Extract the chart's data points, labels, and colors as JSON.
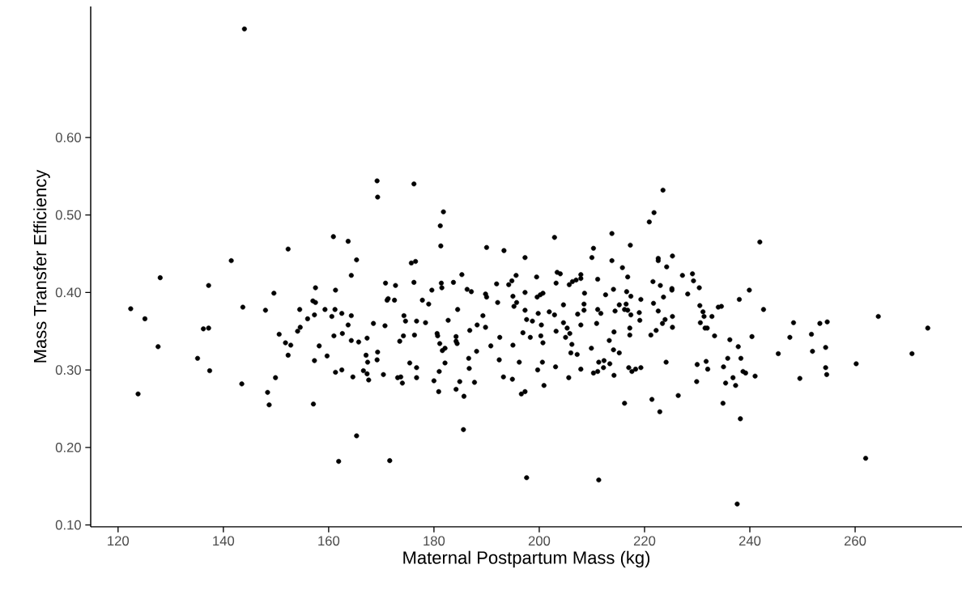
{
  "chart_data": {
    "type": "scatter",
    "xlabel": "Maternal Postpartum Mass (kg)",
    "ylabel": "Mass Transfer Efficiency",
    "xlim": [
      114.8,
      280.3
    ],
    "ylim": [
      0.0975,
      0.769
    ],
    "xticks": [
      120,
      140,
      160,
      180,
      200,
      220,
      240,
      260
    ],
    "yticks": [
      {
        "value": 0.1,
        "label": "0.10"
      },
      {
        "value": 0.2,
        "label": "0.20"
      },
      {
        "value": 0.3,
        "label": "0.30"
      },
      {
        "value": 0.4,
        "label": "0.40"
      },
      {
        "value": 0.5,
        "label": "0.50"
      },
      {
        "value": 0.6,
        "label": "0.60"
      }
    ],
    "marker": "circle",
    "x": [
      144.0,
      122.4,
      125.1,
      123.8,
      127.6,
      128.0,
      135.1,
      136.2,
      137.2,
      137.2,
      137.4,
      141.5,
      143.7,
      143.5,
      148.0,
      148.4,
      148.7,
      149.6,
      149.9,
      150.6,
      151.8,
      152.3,
      152.3,
      152.8,
      154.1,
      154.6,
      154.5,
      156.0,
      157.1,
      157.0,
      157.5,
      157.3,
      157.5,
      157.3,
      158.2,
      159.3,
      159.7,
      160.6,
      161.2,
      161.0,
      160.9,
      161.3,
      161.3,
      161.9,
      169.2,
      169.3,
      176.2,
      181.8,
      181.2,
      181.3,
      163.7,
      165.3,
      164.3,
      190.0,
      193.3,
      197.3,
      202.9,
      175.7,
      176.5,
      176.2,
      170.8,
      172.7,
      171.1,
      171.3,
      172.5,
      177.8,
      179.0,
      179.6,
      181.4,
      181.5,
      183.7,
      185.3,
      186.3,
      187.1,
      189.8,
      190.0,
      191.9,
      192.1,
      194.2,
      194.8,
      195.6,
      195.0,
      195.7,
      195.2,
      197.3,
      199.5,
      199.6,
      200.2,
      200.7,
      203.2,
      203.4,
      204.0,
      205.7,
      206.3,
      207.0,
      207.9,
      204.6,
      162.5,
      164.3,
      163.7,
      162.6,
      164.3,
      165.7,
      167.3,
      168.5,
      170.7,
      174.3,
      174.6,
      176.7,
      178.4,
      182.7,
      184.5,
      189.3,
      189.8,
      188.2,
      186.8,
      180.6,
      180.7,
      181.1,
      181.6,
      182.1,
      184.2,
      184.4,
      184.2,
      188.1,
      186.6,
      186.7,
      187.7,
      184.9,
      184.2,
      185.7,
      180.9,
      180.0,
      181.0,
      182.1,
      176.7,
      176.7,
      175.4,
      176.3,
      174.2,
      173.5,
      173.1,
      173.7,
      174.0,
      170.4,
      169.2,
      169.3,
      167.1,
      167.4,
      166.6,
      167.3,
      167.6,
      164.6,
      162.5,
      165.3,
      171.6,
      185.6,
      197.6,
      190.8,
      192.5,
      192.4,
      193.2,
      194.9,
      195.0,
      196.2,
      196.6,
      197.3,
      196.9,
      197.6,
      198.7,
      197.3,
      198.3,
      199.8,
      200.4,
      200.3,
      200.7,
      200.6,
      199.7,
      200.9,
      201.9,
      202.9,
      203.2,
      203.1,
      204.6,
      205.3,
      205.8,
      205.0,
      206.2,
      206.0,
      207.2,
      205.6,
      207.3,
      207.9,
      207.9,
      223.5,
      221.8,
      220.9,
      213.8,
      217.3,
      210.3,
      210.0,
      213.8,
      215.8,
      222.6,
      222.6,
      225.3,
      224.2,
      241.9,
      207.9,
      211.1,
      216.8,
      221.6,
      223.0,
      225.2,
      225.2,
      227.2,
      229.1,
      229.3,
      230.4,
      239.9,
      228.2,
      208.6,
      212.6,
      214.1,
      216.6,
      217.4,
      219.3,
      208.5,
      208.5,
      211.1,
      211.7,
      210.9,
      215.2,
      216.5,
      216.2,
      216.8,
      214.4,
      217.4,
      219.0,
      219.1,
      217.2,
      217.2,
      214.2,
      213.3,
      221.7,
      222.6,
      223.6,
      225.3,
      223.9,
      223.4,
      225.3,
      222.2,
      221.2,
      230.5,
      231.1,
      231.3,
      232.8,
      230.6,
      231.5,
      231.9,
      233.3,
      234.0,
      234.6,
      238.0,
      242.6,
      236.2,
      237.8,
      240.4,
      209.9,
      214.1,
      215.2,
      211.3,
      212.3,
      213.4,
      212.2,
      210.3,
      211.1,
      214.2,
      217.0,
      217.6,
      218.3,
      219.3,
      224.1,
      230.0,
      231.7,
      232.0,
      229.9,
      235.8,
      235.0,
      238.3,
      238.7,
      239.2,
      241.0,
      235.4,
      236.8,
      237.3,
      216.2,
      221.4,
      222.9,
      226.4,
      234.9,
      238.2,
      211.3,
      237.6,
      245.4,
      248.3,
      247.6,
      249.5,
      251.7,
      251.9,
      253.3,
      254.7,
      254.4,
      254.4,
      254.6,
      260.2,
      264.4,
      262.0,
      270.8,
      273.8
    ],
    "series": [
      {
        "color": "#000000",
        "values": [
          0.74,
          0.379,
          0.366,
          0.269,
          0.33,
          0.419,
          0.315,
          0.353,
          0.354,
          0.409,
          0.299,
          0.441,
          0.381,
          0.282,
          0.377,
          0.271,
          0.255,
          0.399,
          0.29,
          0.346,
          0.335,
          0.456,
          0.319,
          0.332,
          0.35,
          0.355,
          0.378,
          0.366,
          0.256,
          0.389,
          0.387,
          0.371,
          0.406,
          0.312,
          0.331,
          0.378,
          0.318,
          0.369,
          0.378,
          0.344,
          0.472,
          0.403,
          0.297,
          0.182,
          0.544,
          0.523,
          0.54,
          0.504,
          0.486,
          0.46,
          0.466,
          0.442,
          0.422,
          0.458,
          0.454,
          0.445,
          0.471,
          0.438,
          0.44,
          0.413,
          0.412,
          0.409,
          0.39,
          0.392,
          0.39,
          0.39,
          0.385,
          0.403,
          0.412,
          0.406,
          0.413,
          0.423,
          0.404,
          0.401,
          0.398,
          0.394,
          0.411,
          0.387,
          0.41,
          0.415,
          0.422,
          0.395,
          0.387,
          0.382,
          0.4,
          0.42,
          0.394,
          0.397,
          0.399,
          0.412,
          0.426,
          0.424,
          0.41,
          0.414,
          0.416,
          0.423,
          0.384,
          0.373,
          0.37,
          0.358,
          0.347,
          0.338,
          0.336,
          0.341,
          0.36,
          0.357,
          0.37,
          0.363,
          0.363,
          0.361,
          0.364,
          0.378,
          0.37,
          0.355,
          0.358,
          0.351,
          0.347,
          0.344,
          0.334,
          0.325,
          0.328,
          0.343,
          0.334,
          0.337,
          0.324,
          0.315,
          0.302,
          0.284,
          0.285,
          0.275,
          0.266,
          0.272,
          0.286,
          0.298,
          0.309,
          0.303,
          0.29,
          0.309,
          0.345,
          0.344,
          0.337,
          0.29,
          0.291,
          0.283,
          0.294,
          0.313,
          0.323,
          0.319,
          0.31,
          0.299,
          0.295,
          0.287,
          0.291,
          0.3,
          0.215,
          0.183,
          0.223,
          0.161,
          0.331,
          0.342,
          0.313,
          0.291,
          0.288,
          0.332,
          0.31,
          0.269,
          0.272,
          0.348,
          0.365,
          0.363,
          0.377,
          0.342,
          0.373,
          0.358,
          0.344,
          0.335,
          0.31,
          0.3,
          0.28,
          0.375,
          0.371,
          0.35,
          0.304,
          0.361,
          0.354,
          0.347,
          0.342,
          0.333,
          0.322,
          0.32,
          0.29,
          0.372,
          0.301,
          0.358,
          0.532,
          0.503,
          0.491,
          0.476,
          0.461,
          0.457,
          0.445,
          0.441,
          0.432,
          0.444,
          0.441,
          0.447,
          0.433,
          0.465,
          0.418,
          0.417,
          0.42,
          0.414,
          0.409,
          0.405,
          0.403,
          0.422,
          0.424,
          0.415,
          0.406,
          0.403,
          0.398,
          0.399,
          0.397,
          0.404,
          0.401,
          0.395,
          0.391,
          0.385,
          0.377,
          0.378,
          0.373,
          0.36,
          0.384,
          0.385,
          0.378,
          0.377,
          0.376,
          0.371,
          0.374,
          0.364,
          0.354,
          0.345,
          0.349,
          0.338,
          0.386,
          0.376,
          0.394,
          0.369,
          0.365,
          0.36,
          0.355,
          0.351,
          0.345,
          0.383,
          0.375,
          0.369,
          0.369,
          0.361,
          0.354,
          0.354,
          0.344,
          0.381,
          0.382,
          0.391,
          0.378,
          0.339,
          0.33,
          0.343,
          0.328,
          0.326,
          0.322,
          0.31,
          0.312,
          0.308,
          0.303,
          0.296,
          0.298,
          0.293,
          0.303,
          0.298,
          0.301,
          0.303,
          0.31,
          0.307,
          0.311,
          0.301,
          0.285,
          0.315,
          0.304,
          0.315,
          0.298,
          0.296,
          0.292,
          0.283,
          0.29,
          0.28,
          0.257,
          0.262,
          0.246,
          0.267,
          0.257,
          0.237,
          0.158,
          0.127,
          0.321,
          0.361,
          0.342,
          0.289,
          0.346,
          0.324,
          0.36,
          0.362,
          0.329,
          0.303,
          0.294,
          0.308,
          0.369,
          0.186,
          0.321,
          0.354
        ]
      }
    ]
  }
}
